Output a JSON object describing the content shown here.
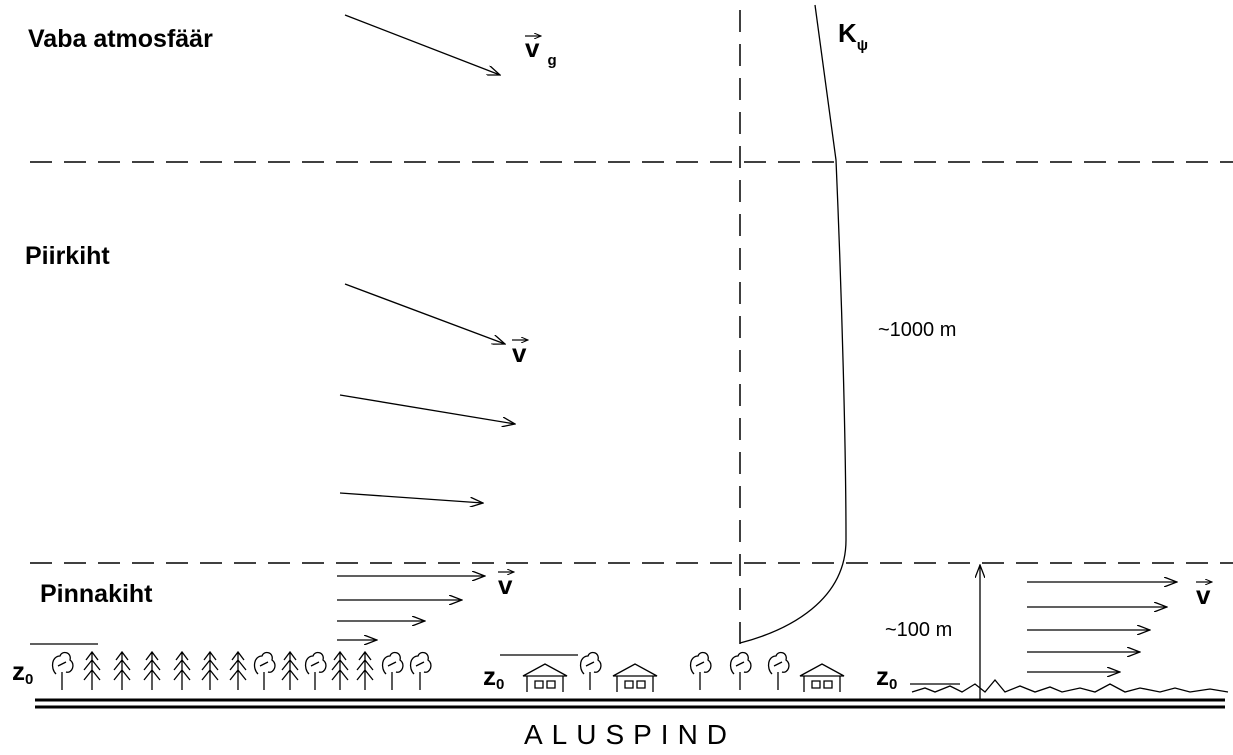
{
  "layers": {
    "free_atmosphere": "Vaba atmosfäär",
    "boundary_layer": "Piirkiht",
    "surface_layer": "Pinnakiht"
  },
  "symbols": {
    "geostrophic_wind": {
      "symbol": "v",
      "subscript": "g"
    },
    "boundary_wind": "v",
    "surface_wind_left": "v",
    "surface_wind_right": "v",
    "diffusivity": {
      "symbol": "K",
      "subscript": "ψ"
    },
    "roughness_forest": {
      "symbol": "z",
      "subscript": "0"
    },
    "roughness_village": {
      "symbol": "z",
      "subscript": "0"
    },
    "roughness_grass": {
      "symbol": "z",
      "subscript": "0"
    }
  },
  "heights": {
    "boundary_layer": "~1000 m",
    "surface_layer": "~100 m"
  },
  "surface": "ALUSPIND"
}
